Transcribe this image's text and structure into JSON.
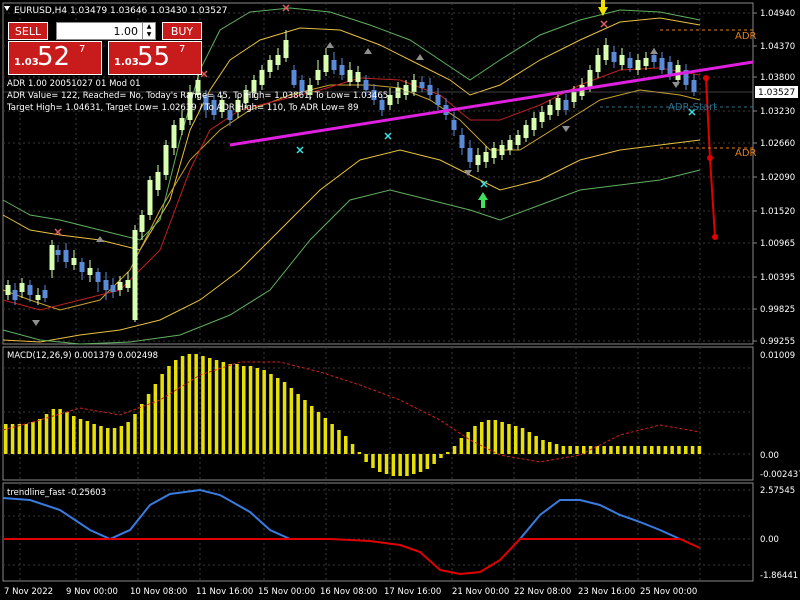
{
  "header": {
    "chart_info": "EURUSD,H4  1.03479 1.03646 1.03430 1.03527",
    "indicator_lines": [
      "ADR 1.00 20051027 01 Mod 01",
      "ADR Value= 122, Reached= No, Today's Range= 45, To High= 1.03861, To Low= 1.03465",
      "Target High= 1.04631, Target Low= 1.02639 / To ADR High= 110, To ADR Low= 89"
    ]
  },
  "trade_panel": {
    "sell_label": "SELL",
    "buy_label": "BUY",
    "lot_value": "1.00",
    "sell_prefix": "1.03",
    "sell_big": "52",
    "sell_sup": "7",
    "buy_prefix": "1.03",
    "buy_big": "55",
    "buy_sup": "7"
  },
  "chart_labels": {
    "adr_top": "ADR",
    "adr_bottom": "ADR",
    "adr_start": "ADR Start"
  },
  "price_axis": {
    "ticks": [
      "1.04940",
      "1.04370",
      "1.03800",
      "1.03230",
      "1.02660",
      "1.02090",
      "1.01520",
      "1.00965",
      "1.00395",
      "0.99825",
      "0.99255"
    ],
    "current_price": "1.03527"
  },
  "macd_panel": {
    "title": "MACD(12,26,9) 0.001379 0.002498",
    "ticks": [
      "0.01009",
      "0.00",
      "-0.002437"
    ]
  },
  "trendline_panel": {
    "title": "trendline_fast -0.25603",
    "ticks": [
      "2.57545",
      "0.00",
      "-1.86441"
    ]
  },
  "time_axis": {
    "labels": [
      "7 Nov 2022",
      "9 Nov 00:00",
      "10 Nov 08:00",
      "11 Nov 16:00",
      "15 Nov 00:00",
      "16 Nov 08:00",
      "17 Nov 16:00",
      "21 Nov 00:00",
      "22 Nov 08:00",
      "23 Nov 16:00",
      "25 Nov 00:00"
    ]
  },
  "colors": {
    "background": "#000000",
    "grid": "#3a3a3a",
    "bull": "#d8ffb0",
    "bear": "#5b8bd6",
    "trendline": "#e020e0",
    "macd_hist": "#e8e000",
    "signal": "#d02020",
    "trend_blue": "#3a7be0",
    "trend_red": "#e00000",
    "sell_red": "#c81c1c"
  }
}
